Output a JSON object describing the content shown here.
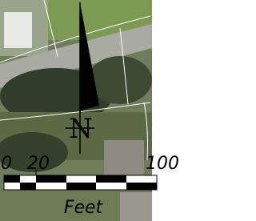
{
  "north_arrow": {
    "label": "N"
  },
  "scale_bar": {
    "labels": [
      "0",
      "20",
      "100"
    ],
    "unit": "Feet"
  }
}
